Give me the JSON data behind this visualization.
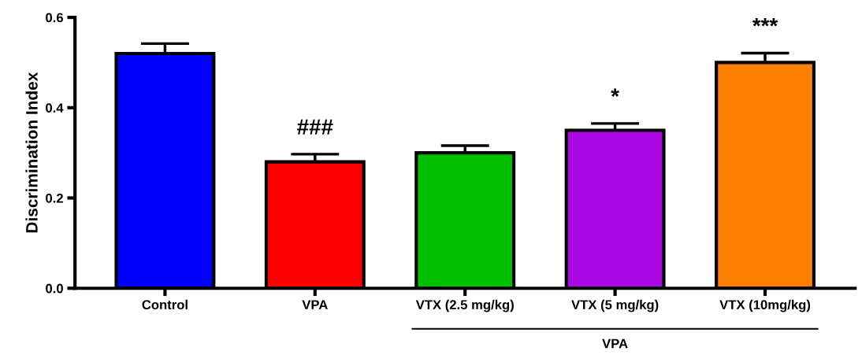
{
  "chart_data": {
    "type": "bar",
    "ylabel": "Discrimination Index",
    "categories": [
      "Control",
      "VPA",
      "VTX (2.5 mg/kg)",
      "VTX (5 mg/kg)",
      "VTX (10mg/kg)"
    ],
    "values": [
      0.52,
      0.28,
      0.3,
      0.35,
      0.5
    ],
    "errors": [
      0.022,
      0.017,
      0.016,
      0.015,
      0.021
    ],
    "colors": [
      "#0000ff",
      "#ff0000",
      "#00bf00",
      "#aa08e2",
      "#ff8000"
    ],
    "ylim": [
      0,
      0.6
    ],
    "yticks": [
      {
        "value": 0,
        "label": "0.0"
      },
      0.2,
      0.4,
      0.6
    ],
    "grid": false,
    "annotations": [
      {
        "text": "###",
        "x": "VPA",
        "y": 0.28
      },
      {
        "text": "*",
        "x": "VTX (5 mg/kg)",
        "y": 0.35
      },
      {
        "text": "***",
        "x": "VTX (10mg/kg)",
        "y": 0.5
      },
      "VPA"
    ]
  }
}
